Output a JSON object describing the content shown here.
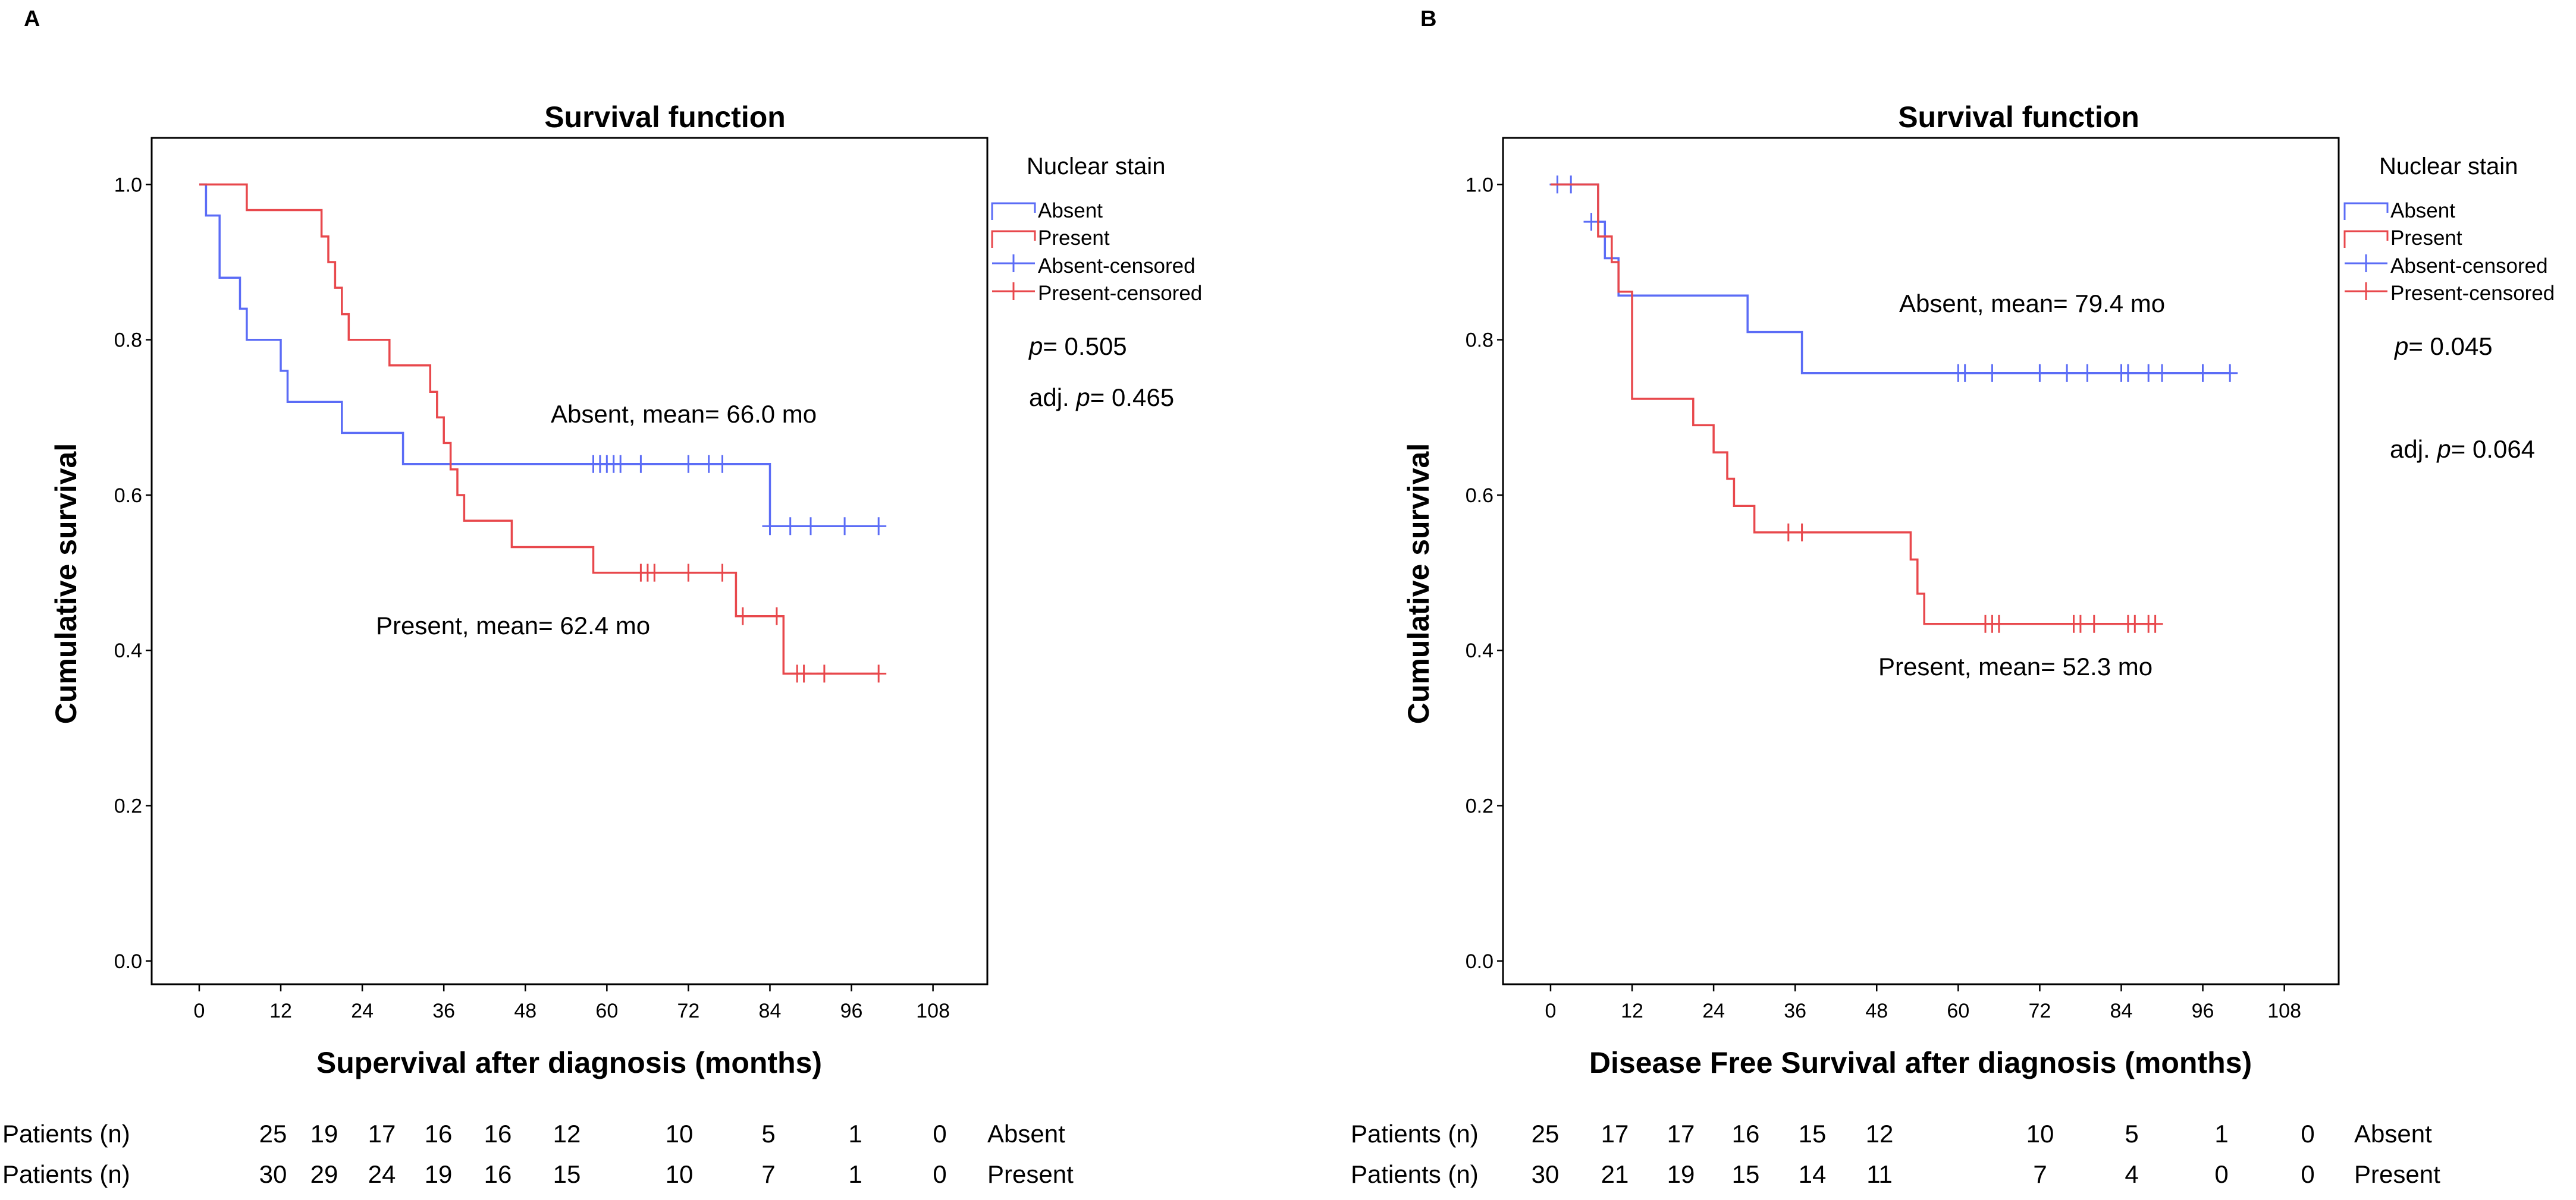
{
  "chart_data": [
    {
      "type": "line",
      "subtype": "kaplan-meier",
      "panel": "A",
      "title": "Survival function",
      "xlabel": "Supervival after diagnosis (months)",
      "ylabel": "Cumulative survival",
      "xlim": [
        -7,
        116
      ],
      "ylim": [
        -0.03,
        1.06
      ],
      "xticks": [
        "0",
        "12",
        "24",
        "36",
        "48",
        "60",
        "72",
        "84",
        "96",
        "108"
      ],
      "yticks": [
        "0.0",
        "0.2",
        "0.4",
        "0.6",
        "0.8",
        "1.0"
      ],
      "legend": {
        "title": "Nuclear stain",
        "items": [
          "Absent",
          "Present",
          "Absent-censored",
          "Present-censored"
        ]
      },
      "series": [
        {
          "name": "Absent",
          "color": "#5b6cf6",
          "steps": [
            [
              0,
              1.0
            ],
            [
              1,
              0.96
            ],
            [
              3,
              0.88
            ],
            [
              6,
              0.84
            ],
            [
              7,
              0.8
            ],
            [
              12,
              0.76
            ],
            [
              13,
              0.72
            ],
            [
              21,
              0.68
            ],
            [
              30,
              0.64
            ],
            [
              84,
              0.56
            ],
            [
              100,
              0.56
            ]
          ],
          "censored": [
            [
              58,
              0.64
            ],
            [
              59,
              0.64
            ],
            [
              60,
              0.64
            ],
            [
              61,
              0.64
            ],
            [
              62,
              0.64
            ],
            [
              65,
              0.64
            ],
            [
              72,
              0.64
            ],
            [
              75,
              0.64
            ],
            [
              77,
              0.64
            ],
            [
              84,
              0.56
            ],
            [
              87,
              0.56
            ],
            [
              90,
              0.56
            ],
            [
              95,
              0.56
            ],
            [
              100,
              0.56
            ]
          ]
        },
        {
          "name": "Present",
          "color": "#e8484c",
          "steps": [
            [
              0,
              1.0
            ],
            [
              7,
              0.967
            ],
            [
              18,
              0.933
            ],
            [
              19,
              0.9
            ],
            [
              20,
              0.867
            ],
            [
              21,
              0.833
            ],
            [
              22,
              0.8
            ],
            [
              28,
              0.767
            ],
            [
              34,
              0.733
            ],
            [
              35,
              0.7
            ],
            [
              36,
              0.667
            ],
            [
              37,
              0.633
            ],
            [
              38,
              0.6
            ],
            [
              39,
              0.567
            ],
            [
              46,
              0.533
            ],
            [
              58,
              0.5
            ],
            [
              79,
              0.444
            ],
            [
              86,
              0.37
            ],
            [
              100,
              0.37
            ]
          ],
          "censored": [
            [
              65,
              0.5
            ],
            [
              66,
              0.5
            ],
            [
              67,
              0.5
            ],
            [
              72,
              0.5
            ],
            [
              77,
              0.5
            ],
            [
              80,
              0.444
            ],
            [
              85,
              0.444
            ],
            [
              88,
              0.37
            ],
            [
              89,
              0.37
            ],
            [
              92,
              0.37
            ],
            [
              100,
              0.37
            ]
          ]
        }
      ],
      "annotations": {
        "absent_mean": "Absent, mean= 66.0 mo",
        "present_mean": "Present, mean= 62.4 mo",
        "p_prefix": "p",
        "p_value": "= 0.505",
        "adj_prefix": "adj. ",
        "adj_p_prefix": "p",
        "adj_p_value": "= 0.465"
      },
      "risk_table": {
        "label": "Patients (n)",
        "absent_label": "Absent",
        "present_label": "Present",
        "absent": [
          "25",
          "19",
          "17",
          "16",
          "16",
          "12",
          "10",
          "5",
          "1",
          "0"
        ],
        "present": [
          "30",
          "29",
          "24",
          "19",
          "16",
          "15",
          "10",
          "7",
          "1",
          "0"
        ]
      }
    },
    {
      "type": "line",
      "subtype": "kaplan-meier",
      "panel": "B",
      "title": "Survival function",
      "xlabel": "Disease Free Survival after diagnosis (months)",
      "ylabel": "Cumulative survival",
      "xlim": [
        -7,
        116
      ],
      "ylim": [
        -0.03,
        1.06
      ],
      "xticks": [
        "0",
        "12",
        "24",
        "36",
        "48",
        "60",
        "72",
        "84",
        "96",
        "108"
      ],
      "yticks": [
        "0.0",
        "0.2",
        "0.4",
        "0.6",
        "0.8",
        "1.0"
      ],
      "legend": {
        "title": "Nuclear stain",
        "items": [
          "Absent",
          "Present",
          "Absent-censored",
          "Present-censored"
        ]
      },
      "series": [
        {
          "name": "Absent",
          "color": "#5b6cf6",
          "steps": [
            [
              0,
              1.0
            ],
            [
              7,
              0.952
            ],
            [
              8,
              0.905
            ],
            [
              10,
              0.857
            ],
            [
              29,
              0.81
            ],
            [
              37,
              0.757
            ],
            [
              100,
              0.757
            ]
          ],
          "censored": [
            [
              1,
              1.0
            ],
            [
              3,
              1.0
            ],
            [
              6,
              0.952
            ],
            [
              60,
              0.757
            ],
            [
              61,
              0.757
            ],
            [
              65,
              0.757
            ],
            [
              72,
              0.757
            ],
            [
              76,
              0.757
            ],
            [
              79,
              0.757
            ],
            [
              84,
              0.757
            ],
            [
              85,
              0.757
            ],
            [
              88,
              0.757
            ],
            [
              90,
              0.757
            ],
            [
              96,
              0.757
            ],
            [
              100,
              0.757
            ]
          ]
        },
        {
          "name": "Present",
          "color": "#e8484c",
          "steps": [
            [
              0,
              1.0
            ],
            [
              7,
              0.933
            ],
            [
              9,
              0.9
            ],
            [
              10,
              0.862
            ],
            [
              12,
              0.724
            ],
            [
              21,
              0.69
            ],
            [
              24,
              0.655
            ],
            [
              26,
              0.621
            ],
            [
              27,
              0.586
            ],
            [
              30,
              0.552
            ],
            [
              53,
              0.517
            ],
            [
              54,
              0.473
            ],
            [
              55,
              0.434
            ],
            [
              89,
              0.434
            ]
          ],
          "censored": [
            [
              35,
              0.552
            ],
            [
              37,
              0.552
            ],
            [
              64,
              0.434
            ],
            [
              65,
              0.434
            ],
            [
              66,
              0.434
            ],
            [
              77,
              0.434
            ],
            [
              78,
              0.434
            ],
            [
              80,
              0.434
            ],
            [
              85,
              0.434
            ],
            [
              86,
              0.434
            ],
            [
              88,
              0.434
            ],
            [
              89,
              0.434
            ]
          ]
        }
      ],
      "annotations": {
        "absent_mean": "Absent, mean= 79.4 mo",
        "present_mean": "Present, mean= 52.3 mo",
        "p_prefix": "p",
        "p_value": "= 0.045",
        "adj_prefix": "adj. ",
        "adj_p_prefix": "p",
        "adj_p_value": "= 0.064"
      },
      "risk_table": {
        "label": "Patients (n)",
        "absent_label": "Absent",
        "present_label": "Present",
        "absent": [
          "25",
          "17",
          "17",
          "16",
          "15",
          "12",
          "10",
          "5",
          "1",
          "0"
        ],
        "present": [
          "30",
          "21",
          "19",
          "15",
          "14",
          "11",
          "7",
          "4",
          "0",
          "0"
        ]
      }
    }
  ]
}
